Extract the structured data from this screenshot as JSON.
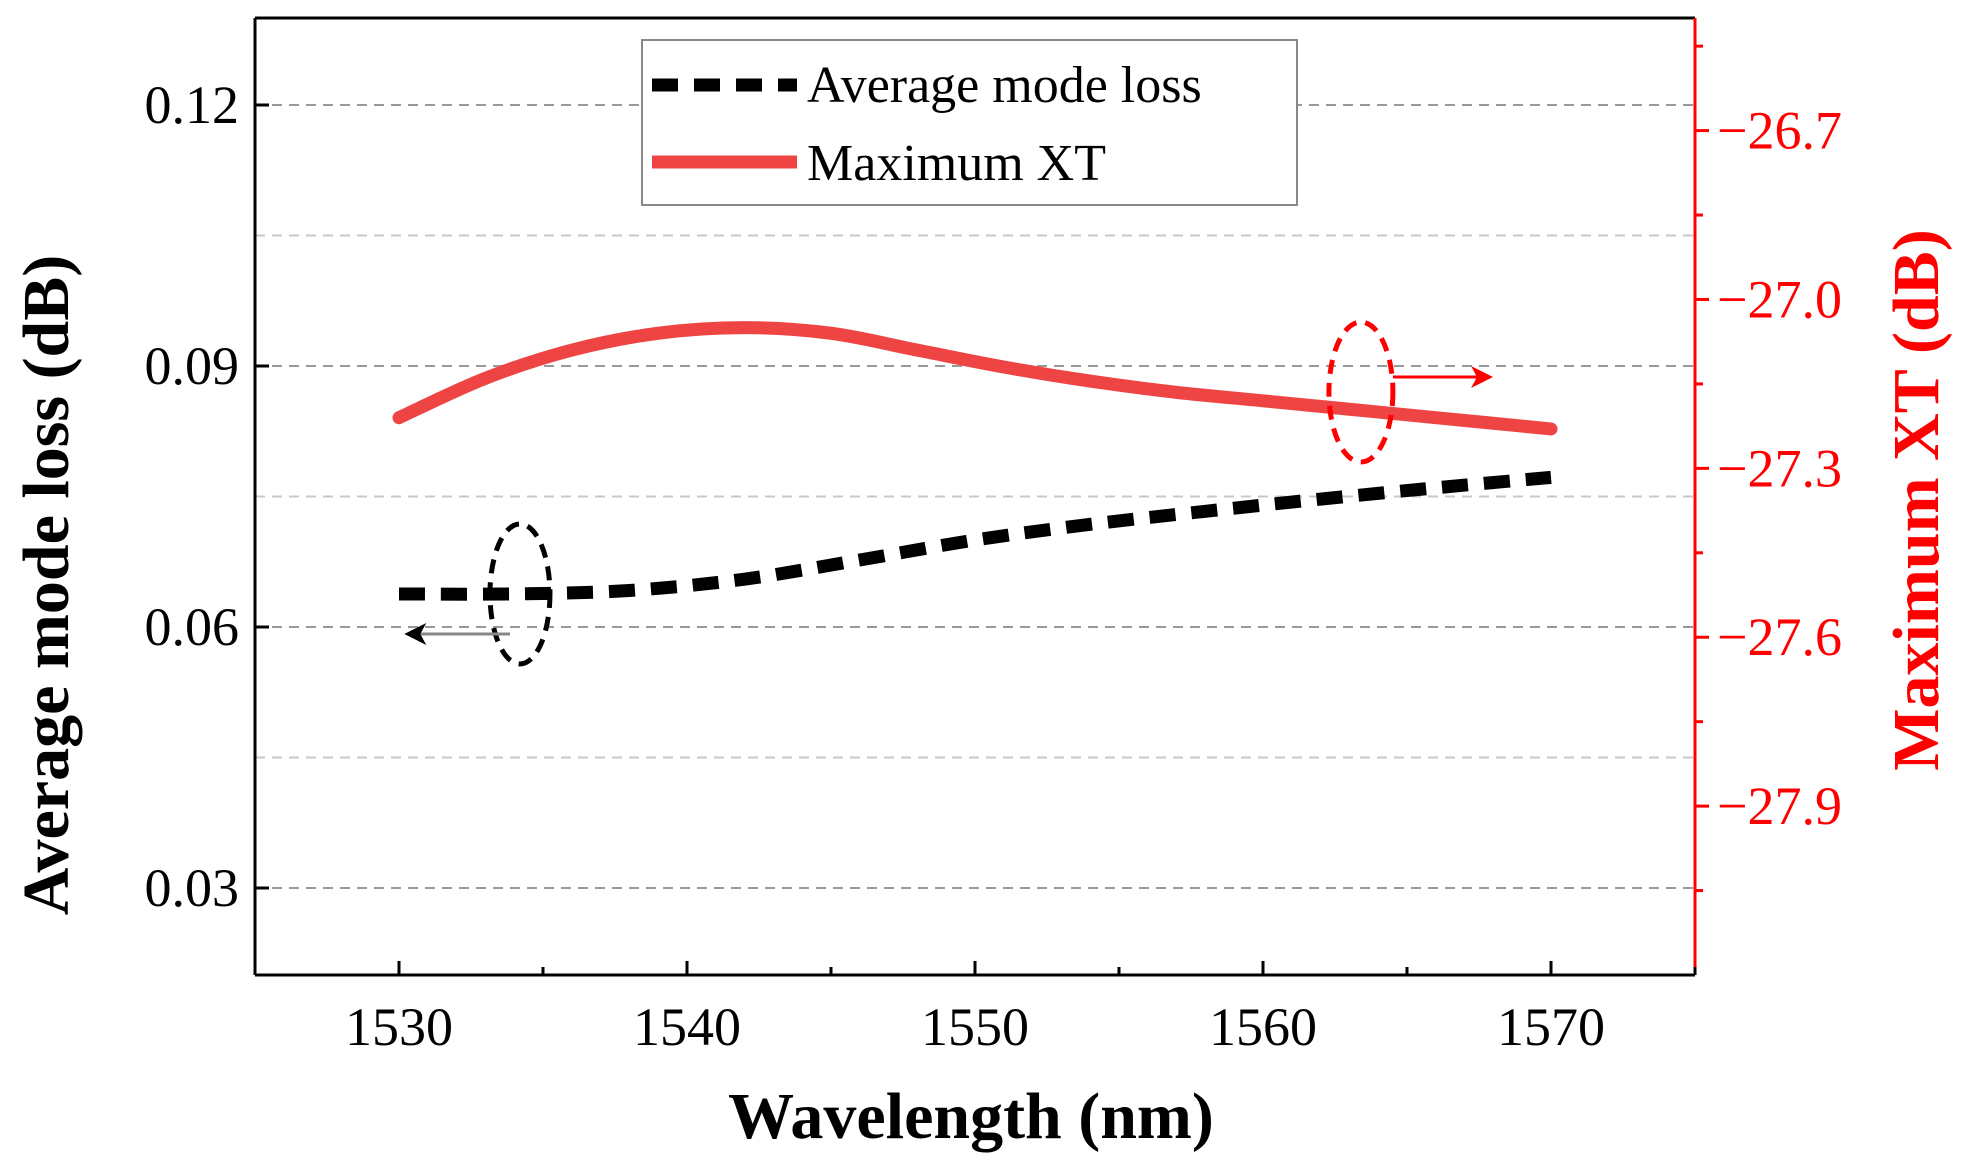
{
  "chart_data": {
    "type": "line",
    "title": "",
    "xlabel": "Wavelength (nm)",
    "ylabel_left": "Average mode loss (dB)",
    "ylabel_right": "Maximum XT (dB)",
    "xlim": [
      1525,
      1575
    ],
    "ylim_left": [
      0.02,
      0.13
    ],
    "ylim_right": [
      -28.2,
      -26.5
    ],
    "x_ticks": [
      1530,
      1540,
      1550,
      1560,
      1570
    ],
    "y_left_ticks": [
      0.03,
      0.06,
      0.09,
      0.12
    ],
    "y_left_tick_labels": [
      "0.03",
      "0.06",
      "0.09",
      "0.12"
    ],
    "y_right_ticks": [
      -27.9,
      -27.6,
      -27.3,
      -27.0,
      -26.7
    ],
    "y_right_tick_labels": [
      "−27.9",
      "−27.6",
      "−27.3",
      "−27.0",
      "−26.7"
    ],
    "grid": true,
    "legend_position": "top-center",
    "series": [
      {
        "name": "Average mode loss",
        "axis": "left",
        "style": "dashed",
        "color": "#000000",
        "x": [
          1530,
          1534,
          1538,
          1542,
          1546,
          1550,
          1554,
          1558,
          1562,
          1566,
          1570
        ],
        "values": [
          0.0638,
          0.0638,
          0.0642,
          0.0655,
          0.0677,
          0.07,
          0.0718,
          0.0733,
          0.0747,
          0.076,
          0.0772
        ]
      },
      {
        "name": "Maximum XT",
        "axis": "right",
        "style": "solid",
        "color": "#ee4444",
        "x": [
          1530,
          1533,
          1536,
          1539,
          1542,
          1545,
          1548,
          1551,
          1554,
          1557,
          1560,
          1563,
          1566,
          1570
        ],
        "values": [
          -27.21,
          -27.14,
          -27.09,
          -27.06,
          -27.05,
          -27.06,
          -27.09,
          -27.12,
          -27.145,
          -27.165,
          -27.18,
          -27.195,
          -27.21,
          -27.23
        ]
      }
    ],
    "colors": {
      "right_axis": "#ff0000",
      "grid": "#999999",
      "axis": "#000000"
    }
  }
}
